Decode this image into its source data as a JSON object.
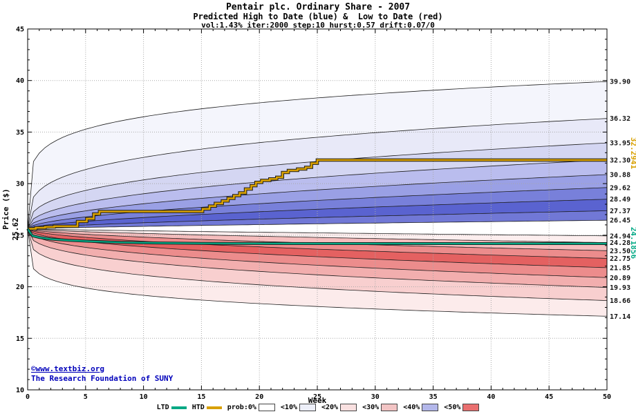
{
  "title": {
    "line1": "Pentair plc. Ordinary Share - 2007",
    "line2": "Predicted High to Date (blue) &  Low to Date (red)",
    "line3": "vol:1.43% iter:2000 step:10 hurst:0.57 drift:0.07/0"
  },
  "axes": {
    "x_label": "Week",
    "y_label": "Price ($)",
    "x_ticks": [
      0,
      5,
      10,
      15,
      20,
      25,
      30,
      35,
      40,
      45,
      50
    ],
    "y_ticks": [
      10,
      15,
      20,
      25,
      30,
      35,
      40,
      45
    ]
  },
  "start_price_label": "25.62",
  "copyright": {
    "line1": "©www.textbiz.org",
    "line2": "The Research Foundation of SUNY",
    "color": "#0000bb"
  },
  "legend": {
    "items": [
      {
        "label": "LTD",
        "type": "line",
        "color": "#00a884"
      },
      {
        "label": "HTD",
        "type": "line",
        "color": "#d8a000"
      },
      {
        "label": "prob:0%",
        "type": "box",
        "color": "#ffffff"
      },
      {
        "label": "<10%",
        "type": "box",
        "color": "#edeff9"
      },
      {
        "label": "<20%",
        "type": "box",
        "color": "#f9e0e0"
      },
      {
        "label": "<30%",
        "type": "box",
        "color": "#f2c4c4"
      },
      {
        "label": "<40%",
        "type": "box",
        "color": "#b3b7ea"
      },
      {
        "label": "<50%",
        "type": "box",
        "color": "#e96f6f"
      }
    ]
  },
  "chart_data": {
    "type": "area",
    "title": "Pentair plc. Ordinary Share - 2007",
    "subtitle": "Predicted High to Date (blue) & Low to Date (red)",
    "params_text": "vol:1.43% iter:2000 step:10 hurst:0.57 drift:0.07/0",
    "start_price": 25.62,
    "week_range": [
      0,
      50
    ],
    "price_range": [
      10,
      45
    ],
    "high_bands": {
      "finals": [
        39.9,
        36.32,
        33.95,
        32.3,
        30.88,
        29.62,
        28.49,
        27.37,
        26.45
      ],
      "exponents": [
        0.17,
        0.27,
        0.35,
        0.42,
        0.48,
        0.54,
        0.6,
        0.68,
        0.78
      ],
      "fills": [
        "#f4f5fc",
        "#e8e9f8",
        "#d4d6f2",
        "#babdee",
        "#9aa0e5",
        "#7880da",
        "#5a63d0",
        "#7178d6"
      ]
    },
    "low_bands": {
      "finals": [
        24.94,
        24.28,
        23.5,
        22.75,
        21.85,
        20.89,
        19.93,
        18.66,
        17.14
      ],
      "exponents": [
        0.78,
        0.68,
        0.6,
        0.54,
        0.48,
        0.42,
        0.35,
        0.27,
        0.17
      ],
      "fills": [
        "#fceeee",
        "#f5bdbd",
        "#ec8c8c",
        "#e46161",
        "#ec8c8c",
        "#f2aeae",
        "#f8cfcf",
        "#fcebeb"
      ]
    },
    "htd": {
      "name": "HTD",
      "color": "#d8a000",
      "final_value": 32.2941,
      "final_label": "32.2941",
      "step_points": [
        [
          0,
          25.62
        ],
        [
          0.7,
          25.72
        ],
        [
          1.5,
          25.8
        ],
        [
          2.3,
          25.87
        ],
        [
          4.3,
          26.33
        ],
        [
          5.1,
          26.6
        ],
        [
          5.7,
          27.05
        ],
        [
          6.2,
          27.3
        ],
        [
          15.1,
          27.55
        ],
        [
          15.7,
          27.82
        ],
        [
          16.2,
          28.08
        ],
        [
          16.8,
          28.32
        ],
        [
          17.3,
          28.58
        ],
        [
          17.8,
          28.84
        ],
        [
          18.3,
          29.1
        ],
        [
          18.8,
          29.48
        ],
        [
          19.3,
          29.8
        ],
        [
          19.7,
          30.12
        ],
        [
          20.2,
          30.32
        ],
        [
          20.9,
          30.46
        ],
        [
          21.5,
          30.62
        ],
        [
          22.0,
          31.08
        ],
        [
          22.5,
          31.28
        ],
        [
          23.3,
          31.42
        ],
        [
          24.0,
          31.58
        ],
        [
          24.5,
          31.98
        ],
        [
          25.0,
          32.2941
        ],
        [
          50,
          32.2941
        ]
      ]
    },
    "ltd": {
      "name": "LTD",
      "color": "#00a884",
      "final_value": 24.1856,
      "final_label": "24.1856",
      "points": [
        [
          0,
          25.62
        ],
        [
          0.4,
          24.95
        ],
        [
          1,
          24.78
        ],
        [
          2,
          24.62
        ],
        [
          3.5,
          24.5
        ],
        [
          5.5,
          24.4
        ],
        [
          8,
          24.3
        ],
        [
          11,
          24.25
        ],
        [
          15,
          24.21
        ],
        [
          25,
          24.19
        ],
        [
          50,
          24.1856
        ]
      ]
    }
  }
}
